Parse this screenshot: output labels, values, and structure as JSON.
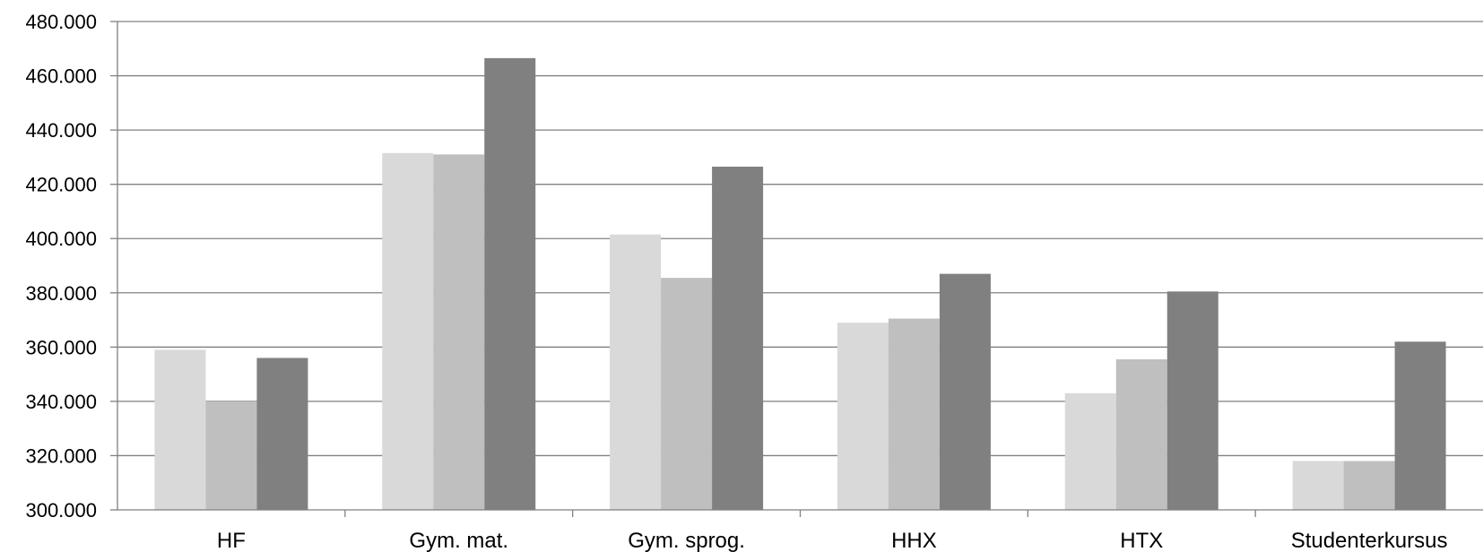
{
  "chart_data": {
    "type": "bar",
    "title": "",
    "xlabel": "",
    "ylabel": "",
    "categories": [
      "HF",
      "Gym. mat.",
      "Gym. sprog.",
      "HHX",
      "HTX",
      "Studenterkursus"
    ],
    "series": [
      {
        "values": [
          359000,
          431500,
          401500,
          369000,
          343000,
          318000
        ]
      },
      {
        "values": [
          340000,
          431000,
          385500,
          370500,
          355500,
          318000
        ]
      },
      {
        "values": [
          356000,
          466500,
          426500,
          387000,
          380500,
          362000
        ]
      }
    ],
    "ylim": [
      300000,
      480000
    ],
    "yticks": [
      "300.000",
      "320.000",
      "340.000",
      "360.000",
      "380.000",
      "400.000",
      "420.000",
      "440.000",
      "460.000",
      "480.000"
    ],
    "grid": true,
    "legend": "none"
  },
  "colors": {
    "series": [
      "#d9d9d9",
      "#bfbfbf",
      "#808080"
    ],
    "gridline": "#808080",
    "axis": "#808080"
  }
}
